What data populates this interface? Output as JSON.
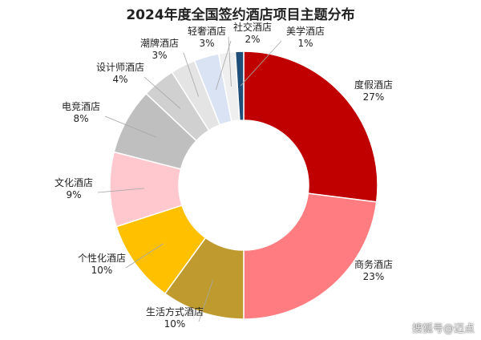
{
  "chart_data": {
    "type": "pie",
    "title": "2024年度全国签约酒店项目主题分布",
    "donut": true,
    "slices": [
      {
        "name": "度假酒店",
        "value": 27,
        "label": "27%",
        "color": "#c00000"
      },
      {
        "name": "商务酒店",
        "value": 23,
        "label": "23%",
        "color": "#ff7c80"
      },
      {
        "name": "生活方式酒店",
        "value": 10,
        "label": "10%",
        "color": "#bf9b2f"
      },
      {
        "name": "个性化酒店",
        "value": 10,
        "label": "10%",
        "color": "#ffc000"
      },
      {
        "name": "文化酒店",
        "value": 9,
        "label": "9%",
        "color": "#ffc7ce"
      },
      {
        "name": "电竞酒店",
        "value": 8,
        "label": "8%",
        "color": "#bfbfbf"
      },
      {
        "name": "设计师酒店",
        "value": 4,
        "label": "4%",
        "color": "#d0d0d0"
      },
      {
        "name": "潮牌酒店",
        "value": 3,
        "label": "3%",
        "color": "#e4e4e4"
      },
      {
        "name": "轻奢酒店",
        "value": 3,
        "label": "3%",
        "color": "#dae3f3"
      },
      {
        "name": "社交酒店",
        "value": 2,
        "label": "2%",
        "color": "#efefef"
      },
      {
        "name": "美学酒店",
        "value": 1,
        "label": "1%",
        "color": "#1f4e79"
      }
    ]
  },
  "watermark": {
    "text": "搜狐号@迈点"
  }
}
